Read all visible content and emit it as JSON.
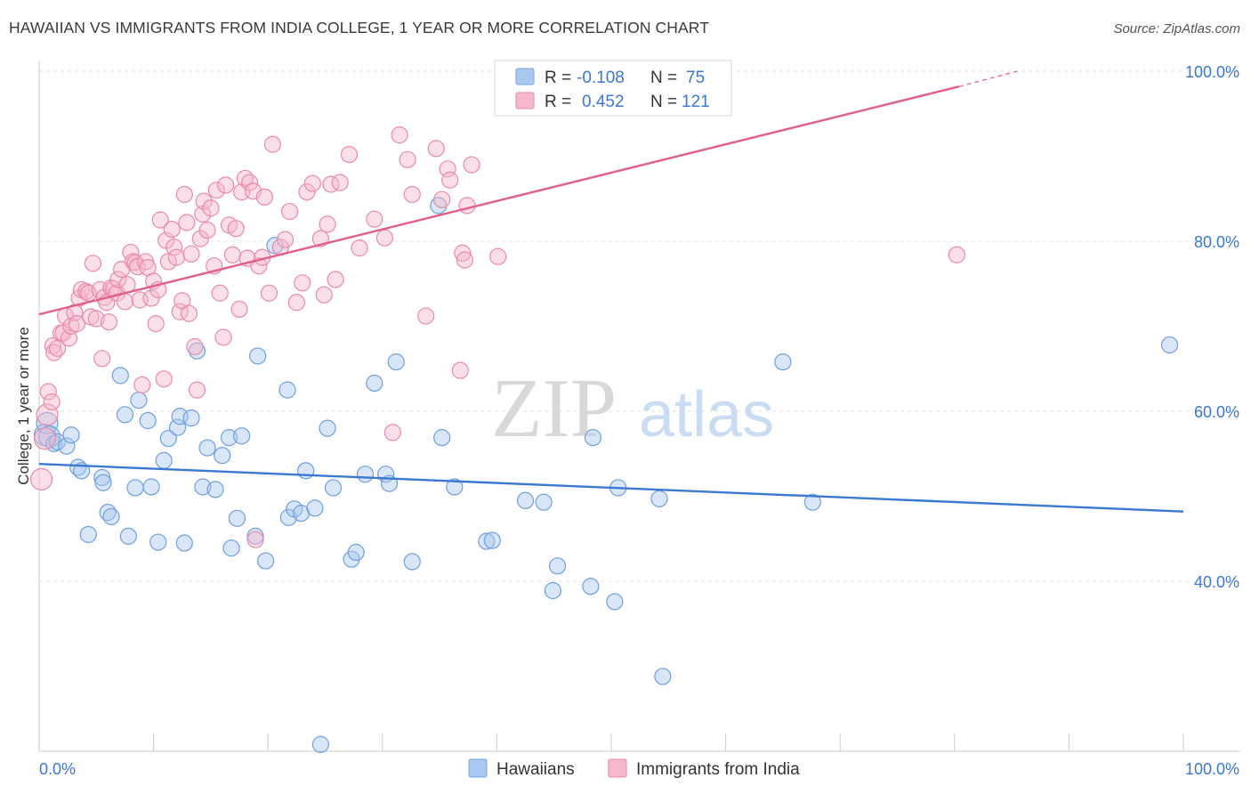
{
  "title": "HAWAIIAN VS IMMIGRANTS FROM INDIA COLLEGE, 1 YEAR OR MORE CORRELATION CHART",
  "source": "Source: ZipAtlas.com",
  "watermark": {
    "zip": "ZIP",
    "atlas": "atlas"
  },
  "legend_top": [
    {
      "r_label": "R =",
      "r_value": "-0.108",
      "n_label": "N =",
      "n_value": "75",
      "color": "#a8c8f0"
    },
    {
      "r_label": "R =",
      "r_value": "0.452",
      "n_label": "N =",
      "n_value": "121",
      "color": "#f6b8cc"
    }
  ],
  "chart_data": {
    "type": "scatter",
    "ylabel": "College, 1 year or more",
    "x_tick_labels": [
      "0.0%",
      "100.0%"
    ],
    "y_tick_labels": [
      "100.0%",
      "80.0%",
      "60.0%",
      "40.0%"
    ],
    "xlim": [
      0,
      100
    ],
    "ylim": [
      20,
      100
    ],
    "grid": "horizontal dashed",
    "legend_placement": "bottom-center",
    "series": [
      {
        "name": "Hawaiians",
        "color": "#a8c8f0",
        "stroke": "#6f9fdc",
        "trend": {
          "x": [
            0,
            100
          ],
          "y": [
            53.8,
            48.2
          ],
          "color": "#3b78d0"
        },
        "points": [
          [
            0.5,
            57.2
          ],
          [
            0.7,
            58.6
          ],
          [
            0.9,
            57.0
          ],
          [
            1.3,
            56.2
          ],
          [
            1.6,
            56.4
          ],
          [
            2.4,
            55.9
          ],
          [
            2.8,
            57.2
          ],
          [
            3.4,
            53.4
          ],
          [
            3.7,
            53.0
          ],
          [
            5.5,
            52.2
          ],
          [
            5.6,
            51.6
          ],
          [
            6.0,
            48.1
          ],
          [
            6.3,
            47.6
          ],
          [
            4.3,
            45.5
          ],
          [
            7.1,
            64.2
          ],
          [
            7.5,
            59.6
          ],
          [
            7.8,
            45.3
          ],
          [
            8.4,
            51.0
          ],
          [
            8.7,
            61.3
          ],
          [
            9.5,
            58.9
          ],
          [
            9.8,
            51.1
          ],
          [
            10.4,
            44.6
          ],
          [
            10.9,
            54.2
          ],
          [
            11.3,
            56.8
          ],
          [
            12.1,
            58.1
          ],
          [
            12.3,
            59.4
          ],
          [
            12.7,
            44.5
          ],
          [
            13.3,
            59.2
          ],
          [
            13.8,
            67.1
          ],
          [
            14.3,
            51.1
          ],
          [
            14.7,
            55.7
          ],
          [
            15.4,
            50.8
          ],
          [
            16.0,
            54.8
          ],
          [
            16.6,
            56.9
          ],
          [
            16.8,
            43.9
          ],
          [
            17.3,
            47.4
          ],
          [
            17.7,
            57.1
          ],
          [
            18.9,
            45.3
          ],
          [
            19.1,
            66.5
          ],
          [
            19.8,
            42.4
          ],
          [
            20.6,
            79.5
          ],
          [
            21.7,
            62.5
          ],
          [
            21.8,
            47.5
          ],
          [
            22.3,
            48.5
          ],
          [
            22.9,
            48.0
          ],
          [
            23.3,
            53.0
          ],
          [
            24.1,
            48.6
          ],
          [
            24.6,
            20.8
          ],
          [
            25.2,
            58.0
          ],
          [
            25.7,
            51.0
          ],
          [
            27.3,
            42.6
          ],
          [
            27.7,
            43.4
          ],
          [
            28.5,
            52.6
          ],
          [
            29.3,
            63.3
          ],
          [
            30.3,
            52.6
          ],
          [
            30.6,
            51.5
          ],
          [
            31.2,
            65.8
          ],
          [
            32.6,
            42.3
          ],
          [
            34.9,
            84.2
          ],
          [
            35.2,
            56.9
          ],
          [
            36.3,
            51.1
          ],
          [
            39.1,
            44.7
          ],
          [
            39.6,
            44.8
          ],
          [
            42.5,
            49.5
          ],
          [
            44.1,
            49.3
          ],
          [
            44.9,
            38.9
          ],
          [
            45.3,
            41.8
          ],
          [
            48.2,
            39.4
          ],
          [
            48.4,
            56.9
          ],
          [
            50.3,
            37.6
          ],
          [
            50.6,
            51.0
          ],
          [
            54.2,
            49.7
          ],
          [
            54.5,
            28.8
          ],
          [
            65.0,
            65.8
          ],
          [
            67.6,
            49.3
          ],
          [
            98.8,
            67.8
          ]
        ]
      },
      {
        "name": "Immigrants from India",
        "color": "#f6b8cc",
        "stroke": "#e88aa8",
        "trend": {
          "x": [
            0,
            80.4
          ],
          "y": [
            71.4,
            98.2
          ],
          "dashed_to": [
            85.5,
            100.0
          ],
          "color": "#e0608a"
        },
        "points": [
          [
            0.2,
            52.0
          ],
          [
            0.5,
            56.8
          ],
          [
            0.7,
            59.6
          ],
          [
            0.8,
            62.3
          ],
          [
            1.1,
            61.1
          ],
          [
            1.2,
            67.7
          ],
          [
            1.3,
            66.9
          ],
          [
            1.6,
            67.4
          ],
          [
            1.9,
            69.2
          ],
          [
            2.1,
            69.2
          ],
          [
            2.3,
            71.2
          ],
          [
            2.6,
            68.6
          ],
          [
            2.8,
            70.0
          ],
          [
            3.1,
            71.6
          ],
          [
            3.3,
            70.3
          ],
          [
            3.5,
            73.3
          ],
          [
            3.7,
            74.3
          ],
          [
            4.1,
            74.1
          ],
          [
            4.3,
            73.9
          ],
          [
            4.5,
            71.1
          ],
          [
            4.7,
            77.4
          ],
          [
            5.0,
            70.9
          ],
          [
            5.3,
            74.3
          ],
          [
            5.5,
            66.2
          ],
          [
            5.7,
            73.4
          ],
          [
            5.9,
            72.8
          ],
          [
            6.1,
            70.5
          ],
          [
            6.3,
            74.5
          ],
          [
            6.5,
            74.4
          ],
          [
            6.8,
            73.9
          ],
          [
            6.9,
            75.5
          ],
          [
            7.2,
            76.7
          ],
          [
            7.5,
            72.9
          ],
          [
            7.7,
            74.9
          ],
          [
            8.0,
            78.7
          ],
          [
            8.2,
            77.6
          ],
          [
            8.4,
            77.5
          ],
          [
            8.6,
            77.0
          ],
          [
            8.8,
            73.1
          ],
          [
            9.0,
            63.1
          ],
          [
            9.3,
            77.6
          ],
          [
            9.5,
            76.9
          ],
          [
            9.8,
            73.3
          ],
          [
            10.0,
            75.3
          ],
          [
            10.2,
            70.3
          ],
          [
            10.4,
            74.3
          ],
          [
            10.6,
            82.5
          ],
          [
            10.9,
            63.8
          ],
          [
            11.1,
            80.1
          ],
          [
            11.3,
            77.6
          ],
          [
            11.6,
            81.4
          ],
          [
            11.8,
            79.3
          ],
          [
            12.0,
            78.1
          ],
          [
            12.3,
            71.7
          ],
          [
            12.5,
            73.0
          ],
          [
            12.7,
            85.5
          ],
          [
            12.9,
            82.2
          ],
          [
            13.1,
            71.5
          ],
          [
            13.3,
            78.5
          ],
          [
            13.6,
            67.6
          ],
          [
            13.8,
            62.5
          ],
          [
            14.1,
            80.3
          ],
          [
            14.3,
            83.2
          ],
          [
            14.4,
            84.7
          ],
          [
            14.7,
            81.3
          ],
          [
            15.0,
            83.9
          ],
          [
            15.3,
            77.1
          ],
          [
            15.5,
            86.0
          ],
          [
            15.8,
            73.9
          ],
          [
            16.1,
            68.7
          ],
          [
            16.3,
            86.6
          ],
          [
            16.6,
            81.9
          ],
          [
            16.9,
            78.4
          ],
          [
            17.2,
            81.5
          ],
          [
            17.5,
            72.0
          ],
          [
            17.7,
            85.8
          ],
          [
            18.0,
            87.4
          ],
          [
            18.2,
            78.0
          ],
          [
            18.4,
            86.9
          ],
          [
            18.7,
            85.9
          ],
          [
            18.9,
            44.9
          ],
          [
            19.2,
            77.1
          ],
          [
            19.5,
            78.1
          ],
          [
            19.7,
            85.2
          ],
          [
            20.1,
            73.9
          ],
          [
            20.4,
            91.4
          ],
          [
            21.1,
            79.3
          ],
          [
            21.5,
            80.2
          ],
          [
            21.9,
            83.5
          ],
          [
            22.5,
            72.8
          ],
          [
            23.0,
            75.1
          ],
          [
            23.4,
            85.8
          ],
          [
            23.9,
            86.8
          ],
          [
            24.6,
            80.3
          ],
          [
            24.9,
            73.7
          ],
          [
            25.2,
            82.0
          ],
          [
            25.5,
            86.7
          ],
          [
            25.9,
            75.5
          ],
          [
            26.3,
            86.9
          ],
          [
            27.1,
            90.2
          ],
          [
            28.0,
            79.2
          ],
          [
            29.3,
            82.6
          ],
          [
            30.2,
            80.4
          ],
          [
            30.9,
            57.5
          ],
          [
            31.5,
            92.5
          ],
          [
            32.2,
            89.6
          ],
          [
            32.6,
            85.5
          ],
          [
            33.8,
            71.2
          ],
          [
            34.7,
            90.9
          ],
          [
            35.2,
            84.9
          ],
          [
            35.7,
            88.5
          ],
          [
            35.9,
            87.2
          ],
          [
            36.8,
            64.8
          ],
          [
            37.0,
            78.6
          ],
          [
            37.2,
            77.8
          ],
          [
            37.4,
            84.2
          ],
          [
            37.8,
            89.0
          ],
          [
            40.1,
            78.2
          ],
          [
            80.2,
            78.4
          ]
        ]
      }
    ]
  },
  "legend_bottom": [
    {
      "label": "Hawaiians",
      "color": "#a8c8f0"
    },
    {
      "label": "Immigrants from India",
      "color": "#f6b8cc"
    }
  ]
}
